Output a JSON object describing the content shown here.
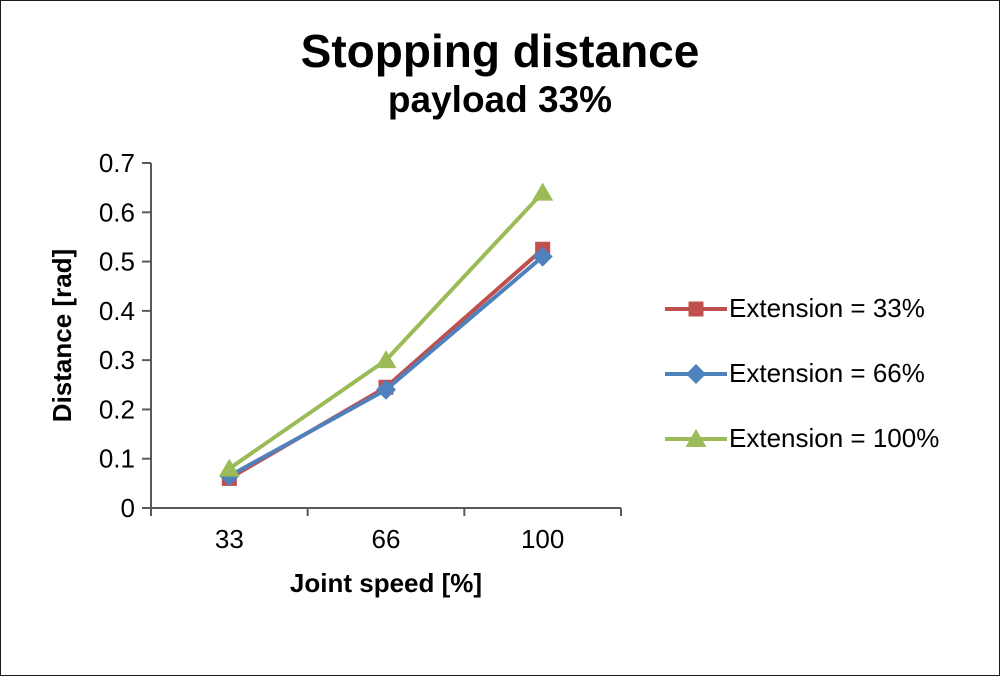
{
  "frame": {
    "background": "#ffffff",
    "border_color": "#1a1a1a"
  },
  "chart_data": {
    "type": "line",
    "title": "Stopping distance",
    "subtitle": "payload 33%",
    "xlabel": "Joint speed [%]",
    "ylabel": "Distance [rad]",
    "categories": [
      "33",
      "66",
      "100"
    ],
    "ylim": [
      0,
      0.7
    ],
    "yticks": [
      0,
      0.1,
      0.2,
      0.3,
      0.4,
      0.5,
      0.6,
      0.7
    ],
    "ytick_labels": [
      "0",
      "0.1",
      "0.2",
      "0.3",
      "0.4",
      "0.5",
      "0.6",
      "0.7"
    ],
    "grid": false,
    "legend_position": "right",
    "axis_color": "#595959",
    "text_color": "#000000",
    "series": [
      {
        "name": "Extension = 33%",
        "color": "#C0504D",
        "marker": "square",
        "values": [
          0.06,
          0.245,
          0.525
        ]
      },
      {
        "name": "Extension = 66%",
        "color": "#4F81BD",
        "marker": "diamond",
        "values": [
          0.065,
          0.24,
          0.51
        ]
      },
      {
        "name": "Extension = 100%",
        "color": "#9BBB59",
        "marker": "triangle",
        "values": [
          0.08,
          0.3,
          0.64
        ]
      }
    ]
  }
}
